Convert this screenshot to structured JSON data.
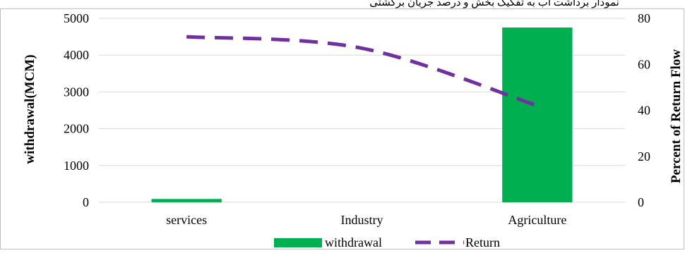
{
  "chart_data": {
    "type": "bar",
    "title": "نمودار برداشت آب به تفکیک بخش و درصد جریان برگشتی",
    "categories": [
      "services",
      "Industry",
      "Agriculture"
    ],
    "series": [
      {
        "name": "withdrawal",
        "type": "bar",
        "axis": "left",
        "values": [
          90,
          null,
          4750
        ]
      },
      {
        "name": "Return",
        "type": "line",
        "style": "dashed",
        "axis": "right",
        "values": [
          72,
          67,
          42
        ]
      }
    ],
    "ylabel": "withdrawal(MCM)",
    "ylim": [
      0,
      5000
    ],
    "yticks": [
      0,
      1000,
      2000,
      3000,
      4000,
      5000
    ],
    "y2label": "Percent of Return Flow",
    "y2lim": [
      0,
      80
    ],
    "y2ticks": [
      0,
      20,
      40,
      60,
      80
    ],
    "grid": true,
    "legend_position": "bottom",
    "colors": {
      "withdrawal": "#00b050",
      "Return": "#7030a0",
      "grid": "#d9d9d9",
      "border": "#bfbfbf"
    }
  }
}
